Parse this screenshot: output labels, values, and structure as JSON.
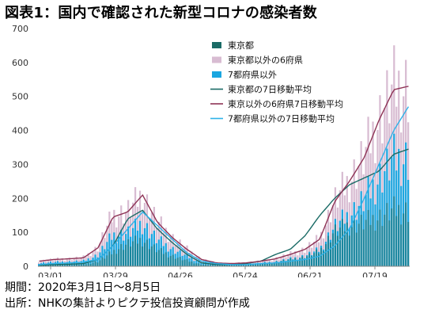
{
  "title": "図表1：国内で確認された新型コロナの感染者数",
  "notes": {
    "period": "期間：2020年3月1日～8月5日",
    "source": "出所：NHKの集計よりピクテ投信投資顧問が作成"
  },
  "colors": {
    "tokyo_bar": "#1a6b66",
    "six_pref_bar": "#d8bcd2",
    "seven_pref_bar": "#1aa6e0",
    "tokyo_ma": "#1a6b66",
    "six_pref_ma": "#8e3355",
    "seven_pref_ma": "#2fb2e8"
  },
  "chart_data": {
    "type": "bar",
    "yaxis": {
      "ticks": [
        0,
        100,
        200,
        300,
        400,
        500,
        600,
        700
      ],
      "ylim": [
        0,
        700
      ]
    },
    "xaxis": {
      "tick_labels": [
        "03/01",
        "03/29",
        "04/26",
        "05/24",
        "06/21",
        "07/19"
      ]
    },
    "legend": {
      "placement": "top-right",
      "entries": [
        "東京都",
        "東京都以外の6府県",
        "7都府県以外",
        "東京都の7日移動平均",
        "東京以外の6府県7日移動平均",
        "7都府県以外の7日移動平均"
      ]
    },
    "weekly_totals": [
      15,
      20,
      22,
      25,
      55,
      150,
      160,
      210,
      130,
      85,
      50,
      20,
      10,
      8,
      10,
      15,
      22,
      35,
      50,
      80,
      190,
      250,
      320,
      430,
      520,
      530
    ],
    "series": [
      {
        "name": "東京都の7日移動平均",
        "kind": "line",
        "values": [
          3,
          5,
          6,
          8,
          20,
          60,
          140,
          165,
          110,
          70,
          35,
          10,
          5,
          5,
          8,
          15,
          35,
          50,
          90,
          150,
          200,
          240,
          260,
          280,
          330,
          345
        ]
      },
      {
        "name": "東京以外の6府県7日移動平均",
        "kind": "line",
        "values": [
          15,
          20,
          22,
          25,
          55,
          145,
          160,
          210,
          130,
          85,
          50,
          20,
          10,
          8,
          10,
          15,
          22,
          35,
          50,
          80,
          190,
          250,
          320,
          430,
          520,
          530
        ]
      },
      {
        "name": "7都府県以外の7日移動平均",
        "kind": "line",
        "values": [
          5,
          8,
          10,
          12,
          20,
          60,
          110,
          160,
          120,
          80,
          40,
          15,
          8,
          5,
          5,
          8,
          10,
          15,
          20,
          30,
          60,
          110,
          200,
          300,
          400,
          470
        ]
      }
    ]
  }
}
